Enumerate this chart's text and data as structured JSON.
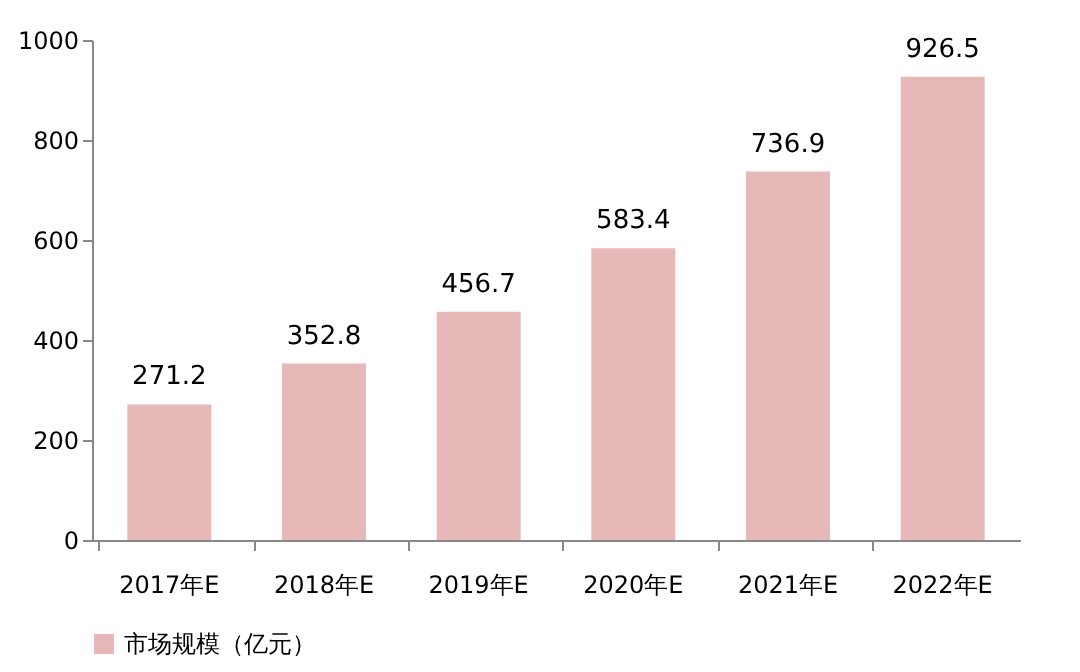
{
  "chart_data": {
    "type": "bar",
    "categories": [
      "2017年E",
      "2018年E",
      "2019年E",
      "2020年E",
      "2021年E",
      "2022年E"
    ],
    "series": [
      {
        "name": "市场规模（亿元）",
        "color": "#e6b8b7",
        "values": [
          271.2,
          352.8,
          456.7,
          583.4,
          736.9,
          926.5
        ]
      }
    ],
    "ylim": [
      0,
      1000
    ],
    "yticks": [
      0,
      200,
      400,
      600,
      800,
      1000
    ],
    "data_labels": true,
    "grid": false,
    "legend": "bottom left"
  }
}
